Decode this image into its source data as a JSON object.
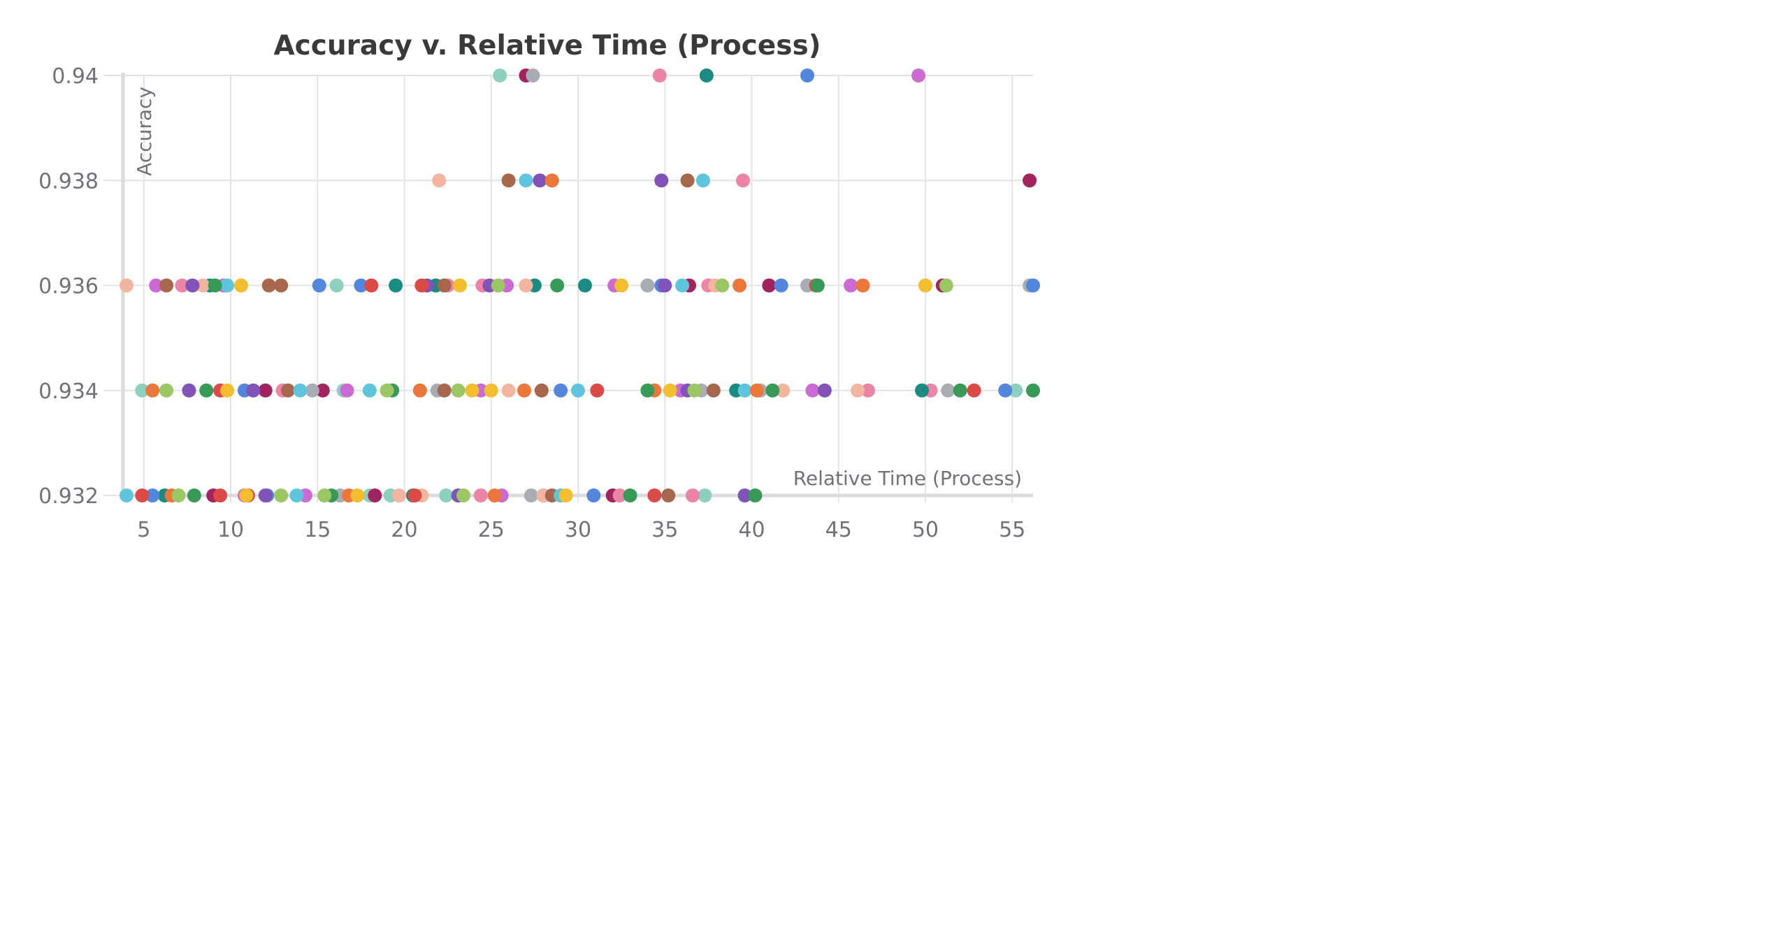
{
  "chart_data": {
    "type": "scatter",
    "title": "Accuracy v. Relative Time (Process)",
    "xlabel": "Relative Time (Process)",
    "ylabel": "Accuracy",
    "xlim": [
      3.8,
      56.2
    ],
    "ylim": [
      0.932,
      0.94
    ],
    "xticks": [
      "5",
      "10",
      "15",
      "20",
      "25",
      "30",
      "35",
      "40",
      "45",
      "50",
      "55"
    ],
    "yticks": [
      "0.932",
      "0.934",
      "0.936",
      "0.938",
      "0.94"
    ],
    "grid": true,
    "legend": "none",
    "series": [
      {
        "color": "#8ed0c0",
        "points": [
          [
            25.5,
            0.94
          ],
          [
            16.1,
            0.936
          ],
          [
            16.5,
            0.934
          ],
          [
            4.9,
            0.934
          ],
          [
            18.0,
            0.932
          ],
          [
            22.4,
            0.932
          ],
          [
            37.3,
            0.932
          ],
          [
            55.2,
            0.934
          ],
          [
            19.2,
            0.932
          ]
        ]
      },
      {
        "color": "#a1245f",
        "points": [
          [
            27.0,
            0.94
          ],
          [
            56.0,
            0.938
          ],
          [
            36.4,
            0.936
          ],
          [
            41.0,
            0.936
          ],
          [
            51.0,
            0.936
          ],
          [
            12.0,
            0.934
          ],
          [
            15.3,
            0.934
          ],
          [
            32.0,
            0.932
          ],
          [
            18.3,
            0.932
          ],
          [
            9.0,
            0.932
          ]
        ]
      },
      {
        "color": "#a8adb3",
        "points": [
          [
            27.4,
            0.94
          ],
          [
            34.0,
            0.936
          ],
          [
            43.2,
            0.936
          ],
          [
            56.0,
            0.936
          ],
          [
            21.9,
            0.934
          ],
          [
            37.1,
            0.934
          ],
          [
            40.5,
            0.934
          ],
          [
            51.3,
            0.934
          ],
          [
            14.7,
            0.934
          ],
          [
            16.3,
            0.932
          ],
          [
            27.3,
            0.932
          ]
        ]
      },
      {
        "color": "#ec84a7",
        "points": [
          [
            34.7,
            0.94
          ],
          [
            39.5,
            0.938
          ],
          [
            7.2,
            0.936
          ],
          [
            22.5,
            0.936
          ],
          [
            24.5,
            0.936
          ],
          [
            37.5,
            0.936
          ],
          [
            50.3,
            0.934
          ],
          [
            46.7,
            0.934
          ],
          [
            13.0,
            0.934
          ],
          [
            24.4,
            0.932
          ],
          [
            36.6,
            0.932
          ],
          [
            32.4,
            0.932
          ]
        ]
      },
      {
        "color": "#1a8b81",
        "points": [
          [
            37.4,
            0.94
          ],
          [
            8.8,
            0.936
          ],
          [
            19.5,
            0.936
          ],
          [
            21.8,
            0.936
          ],
          [
            27.5,
            0.936
          ],
          [
            30.4,
            0.936
          ],
          [
            49.8,
            0.934
          ],
          [
            39.1,
            0.934
          ],
          [
            20.5,
            0.932
          ],
          [
            6.2,
            0.932
          ],
          [
            28.0,
            0.932
          ]
        ]
      },
      {
        "color": "#5387dd",
        "points": [
          [
            43.2,
            0.94
          ],
          [
            15.1,
            0.936
          ],
          [
            17.5,
            0.936
          ],
          [
            34.8,
            0.936
          ],
          [
            41.7,
            0.936
          ],
          [
            56.2,
            0.936
          ],
          [
            10.8,
            0.934
          ],
          [
            29.0,
            0.934
          ],
          [
            54.6,
            0.934
          ],
          [
            5.5,
            0.932
          ],
          [
            30.9,
            0.932
          ],
          [
            12.1,
            0.932
          ]
        ]
      },
      {
        "color": "#cb6ad2",
        "points": [
          [
            49.6,
            0.94
          ],
          [
            5.7,
            0.936
          ],
          [
            9.6,
            0.936
          ],
          [
            25.9,
            0.936
          ],
          [
            45.7,
            0.936
          ],
          [
            32.1,
            0.936
          ],
          [
            24.4,
            0.934
          ],
          [
            35.9,
            0.934
          ],
          [
            43.5,
            0.934
          ],
          [
            16.7,
            0.934
          ],
          [
            14.3,
            0.932
          ],
          [
            10.8,
            0.932
          ],
          [
            25.6,
            0.932
          ]
        ]
      },
      {
        "color": "#f2b6a0",
        "points": [
          [
            22.0,
            0.938
          ],
          [
            4.0,
            0.936
          ],
          [
            8.4,
            0.936
          ],
          [
            27.0,
            0.936
          ],
          [
            37.9,
            0.936
          ],
          [
            46.1,
            0.934
          ],
          [
            26.0,
            0.934
          ],
          [
            41.8,
            0.934
          ],
          [
            21.0,
            0.932
          ],
          [
            28.0,
            0.932
          ],
          [
            19.7,
            0.932
          ]
        ]
      },
      {
        "color": "#a6674c",
        "points": [
          [
            26.0,
            0.938
          ],
          [
            36.3,
            0.938
          ],
          [
            6.3,
            0.936
          ],
          [
            12.2,
            0.936
          ],
          [
            12.9,
            0.936
          ],
          [
            22.3,
            0.936
          ],
          [
            27.9,
            0.934
          ],
          [
            37.8,
            0.934
          ],
          [
            22.3,
            0.934
          ],
          [
            13.3,
            0.934
          ],
          [
            35.2,
            0.932
          ],
          [
            28.5,
            0.932
          ]
        ]
      },
      {
        "color": "#5fc5dd",
        "points": [
          [
            27.0,
            0.938
          ],
          [
            37.2,
            0.938
          ],
          [
            36.0,
            0.936
          ],
          [
            9.8,
            0.936
          ],
          [
            18.0,
            0.934
          ],
          [
            30.0,
            0.934
          ],
          [
            39.6,
            0.934
          ],
          [
            14.0,
            0.934
          ],
          [
            4.0,
            0.932
          ],
          [
            13.8,
            0.932
          ],
          [
            29.0,
            0.932
          ]
        ]
      },
      {
        "color": "#8152b8",
        "points": [
          [
            27.8,
            0.938
          ],
          [
            34.8,
            0.938
          ],
          [
            7.8,
            0.936
          ],
          [
            21.3,
            0.936
          ],
          [
            24.9,
            0.936
          ],
          [
            35.0,
            0.936
          ],
          [
            7.6,
            0.934
          ],
          [
            11.3,
            0.934
          ],
          [
            44.2,
            0.934
          ],
          [
            36.3,
            0.934
          ],
          [
            23.1,
            0.932
          ],
          [
            12.0,
            0.932
          ],
          [
            39.6,
            0.932
          ]
        ]
      },
      {
        "color": "#ec773a",
        "points": [
          [
            28.5,
            0.938
          ],
          [
            39.3,
            0.936
          ],
          [
            46.4,
            0.936
          ],
          [
            5.5,
            0.934
          ],
          [
            20.9,
            0.934
          ],
          [
            26.9,
            0.934
          ],
          [
            34.4,
            0.934
          ],
          [
            40.3,
            0.934
          ],
          [
            25.2,
            0.932
          ],
          [
            6.6,
            0.932
          ],
          [
            16.8,
            0.932
          ]
        ]
      },
      {
        "color": "#dc4a47",
        "points": [
          [
            18.1,
            0.936
          ],
          [
            21.0,
            0.936
          ],
          [
            43.7,
            0.936
          ],
          [
            52.8,
            0.934
          ],
          [
            31.1,
            0.934
          ],
          [
            9.4,
            0.934
          ],
          [
            4.9,
            0.932
          ],
          [
            11.0,
            0.932
          ],
          [
            34.4,
            0.932
          ],
          [
            20.6,
            0.932
          ],
          [
            9.4,
            0.932
          ]
        ]
      },
      {
        "color": "#f2be2f",
        "points": [
          [
            10.6,
            0.936
          ],
          [
            23.2,
            0.936
          ],
          [
            32.5,
            0.936
          ],
          [
            50.0,
            0.936
          ],
          [
            9.8,
            0.934
          ],
          [
            25.0,
            0.934
          ],
          [
            35.3,
            0.934
          ],
          [
            23.9,
            0.934
          ],
          [
            10.9,
            0.932
          ],
          [
            17.3,
            0.932
          ],
          [
            29.3,
            0.932
          ]
        ]
      },
      {
        "color": "#379a57",
        "points": [
          [
            9.1,
            0.936
          ],
          [
            28.8,
            0.936
          ],
          [
            43.8,
            0.936
          ],
          [
            8.6,
            0.934
          ],
          [
            19.3,
            0.934
          ],
          [
            34.0,
            0.934
          ],
          [
            41.2,
            0.934
          ],
          [
            52.0,
            0.934
          ],
          [
            56.2,
            0.934
          ],
          [
            7.9,
            0.932
          ],
          [
            33.0,
            0.932
          ],
          [
            40.2,
            0.932
          ],
          [
            15.8,
            0.932
          ]
        ]
      },
      {
        "color": "#9ac663",
        "points": [
          [
            25.4,
            0.936
          ],
          [
            38.3,
            0.936
          ],
          [
            51.2,
            0.936
          ],
          [
            6.3,
            0.934
          ],
          [
            19.0,
            0.934
          ],
          [
            23.1,
            0.934
          ],
          [
            36.7,
            0.934
          ],
          [
            7.0,
            0.932
          ],
          [
            15.4,
            0.932
          ],
          [
            23.4,
            0.932
          ],
          [
            12.9,
            0.932
          ]
        ]
      }
    ]
  }
}
